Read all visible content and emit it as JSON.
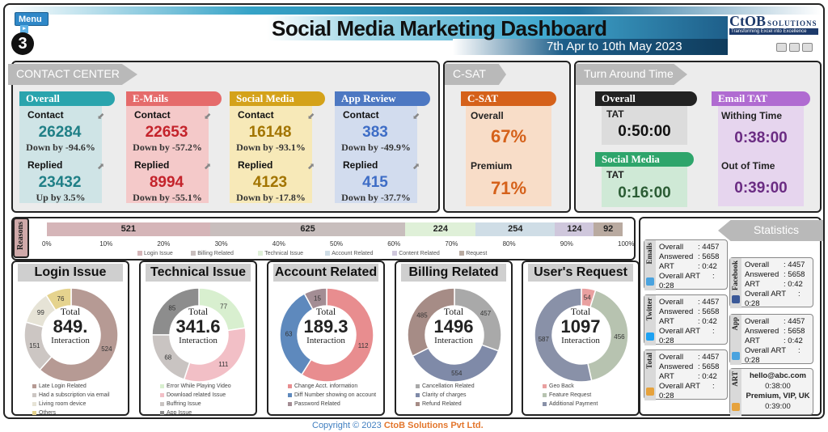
{
  "header": {
    "title": "Social Media Marketing Dashboard",
    "subtitle": "7th Apr to 10th May 2023",
    "menu_label": "Menu",
    "badge": "3",
    "logo_main": "CtOB",
    "logo_suffix": "SOLUTIONS",
    "logo_tagline": "Transforming Excel into Excellence"
  },
  "contact_center": {
    "heading": "CONTACT CENTER",
    "contact_label": "Contact",
    "replied_label": "Replied",
    "cards": [
      {
        "title": "Overall",
        "contact": "26284",
        "contact_change": "Down by -94.6%",
        "replied": "23432",
        "replied_change": "Up by 3.5%",
        "tab_color": "#2aa4ad",
        "body_color": "#cfe4e6",
        "num_color": "#1f7f86"
      },
      {
        "title": "E-Mails",
        "contact": "22653",
        "contact_change": "Down by -57.2%",
        "replied": "8994",
        "replied_change": "Down by -55.1%",
        "tab_color": "#e56b6b",
        "body_color": "#f4c9c9",
        "num_color": "#c4232b"
      },
      {
        "title": "Social Media",
        "contact": "16148",
        "contact_change": "Down by -93.1%",
        "replied": "4123",
        "replied_change": "Down by -17.8%",
        "tab_color": "#d4a21a",
        "body_color": "#f7e9b8",
        "num_color": "#a27400"
      },
      {
        "title": "App Review",
        "contact": "383",
        "contact_change": "Down by -49.9%",
        "replied": "415",
        "replied_change": "Down by -37.7%",
        "tab_color": "#4d78c2",
        "body_color": "#d2dcee",
        "num_color": "#3e6dc6"
      }
    ]
  },
  "csat": {
    "heading": "C-SAT",
    "card_title": "C-SAT",
    "overall_label": "Overall",
    "overall_value": "67%",
    "premium_label": "Premium",
    "premium_value": "71%"
  },
  "tat": {
    "heading": "Turn Around Time",
    "overall": {
      "title": "Overall",
      "label": "TAT",
      "value": "0:50:00"
    },
    "social": {
      "title": "Social Media",
      "label": "TAT",
      "value": "0:16:00"
    },
    "email": {
      "title": "Email TAT",
      "within_label": "Withing Time",
      "within_value": "0:38:00",
      "out_label": "Out of Time",
      "out_value": "0:39:00"
    }
  },
  "reasons": {
    "label": "Reasons",
    "segments": [
      {
        "name": "Login Issue",
        "value": 521,
        "color": "#d5b5b8"
      },
      {
        "name": "Billing Related",
        "value": 625,
        "color": "#c8bebd"
      },
      {
        "name": "Technical Issue",
        "value": 224,
        "color": "#dff0d8"
      },
      {
        "name": "Account Related",
        "value": 254,
        "color": "#cfdde6"
      },
      {
        "name": "Content Related",
        "value": 124,
        "color": "#cfc7dc"
      },
      {
        "name": "Request",
        "value": 92,
        "color": "#b9aaa0"
      }
    ],
    "ticks": [
      "0%",
      "10%",
      "20%",
      "30%",
      "40%",
      "50%",
      "60%",
      "70%",
      "80%",
      "90%",
      "100%"
    ]
  },
  "chart_data": [
    {
      "type": "pie",
      "title": "Login Issue",
      "total_label": "Total",
      "total": "849.",
      "sub": "Interaction",
      "slices": [
        {
          "name": "Late Login Related",
          "value": 524,
          "color": "#b69a94"
        },
        {
          "name": "Had a subscription via email",
          "value": 151,
          "color": "#ccc6c3"
        },
        {
          "name": "Living room device",
          "value": 99,
          "color": "#e6e3d6"
        },
        {
          "name": "Others",
          "value": 76,
          "color": "#e5d38e"
        }
      ],
      "labels": [
        "524",
        "151",
        "99",
        "76"
      ]
    },
    {
      "type": "pie",
      "title": "Technical Issue",
      "total_label": "Total",
      "total": "341.6",
      "sub": "Interaction",
      "slices": [
        {
          "name": "Error While Playing Video",
          "value": 77,
          "color": "#d8efcf"
        },
        {
          "name": "Download related Issue",
          "value": 111,
          "color": "#f2bfc6"
        },
        {
          "name": "Buffring Issue",
          "value": 68,
          "color": "#c9c4c2"
        },
        {
          "name": "App Issue",
          "value": 85,
          "color": "#8d8d8d"
        }
      ],
      "labels": [
        "77",
        "111",
        "68",
        "85"
      ]
    },
    {
      "type": "pie",
      "title": "Account Related",
      "total_label": "Total",
      "total": "189.3",
      "sub": "Interaction",
      "slices": [
        {
          "name": "Change Acct. information",
          "value": 112,
          "color": "#e88d8f"
        },
        {
          "name": "Diff Number showing on account",
          "value": 63,
          "color": "#5e89bd"
        },
        {
          "name": "Password Related",
          "value": 15,
          "color": "#a38d94"
        }
      ],
      "labels": [
        "112",
        "63",
        "15"
      ]
    },
    {
      "type": "pie",
      "title": "Billing Related",
      "total_label": "Total",
      "total": "1496",
      "sub": "Interaction",
      "slices": [
        {
          "name": "Cancellation Related",
          "value": 457,
          "color": "#a9a9a9"
        },
        {
          "name": "Clarity of charges",
          "value": 554,
          "color": "#7f8aa8"
        },
        {
          "name": "Refund Related",
          "value": 485,
          "color": "#a68c86"
        }
      ],
      "labels": [
        "457",
        "554",
        "485"
      ]
    },
    {
      "type": "pie",
      "title": "User's Request",
      "total_label": "Total",
      "total": "1097",
      "sub": "Interaction",
      "slices": [
        {
          "name": "Geo Back",
          "value": 54,
          "color": "#e9a0a0"
        },
        {
          "name": "Feature Request",
          "value": 456,
          "color": "#b7c3b0"
        },
        {
          "name": "Additional Payment",
          "value": 587,
          "color": "#8991a8"
        }
      ],
      "labels": [
        "54",
        "456",
        "587"
      ]
    }
  ],
  "statistics": {
    "heading": "Statistics",
    "labels": {
      "overall": "Overall",
      "answered": "Answered",
      "art": "ART",
      "overall_art": "Overall ART"
    },
    "channels": [
      {
        "name": "Emails",
        "overall": "4457",
        "answered": "5658",
        "art": "0:42",
        "overall_art": "0:28",
        "icon_color": "#4aa3df"
      },
      {
        "name": "Twitter",
        "overall": "4457",
        "answered": "5658",
        "art": "0:42",
        "overall_art": "0:28",
        "icon_color": "#1da1f2"
      },
      {
        "name": "Total",
        "overall": "4457",
        "answered": "5658",
        "art": "0:42",
        "overall_art": "0:28",
        "icon_color": "#e6a23c"
      },
      {
        "name": "Facebook",
        "overall": "4457",
        "answered": "5658",
        "art": "0:42",
        "overall_art": "0:28",
        "icon_color": "#3b5998"
      },
      {
        "name": "App",
        "overall": "4457",
        "answered": "5658",
        "art": "0:42",
        "overall_art": "0:28",
        "icon_color": "#4aa3df"
      }
    ],
    "art_box": {
      "label": "ART",
      "email": "hello@abc.com",
      "email_time": "0:38:00",
      "tier": "Premium, VIP, UK",
      "tier_time": "0:39:00"
    }
  },
  "footer": {
    "copyright_prefix": "Copyright © 2023 ",
    "company": "CtoB Solutions Pvt Ltd."
  }
}
